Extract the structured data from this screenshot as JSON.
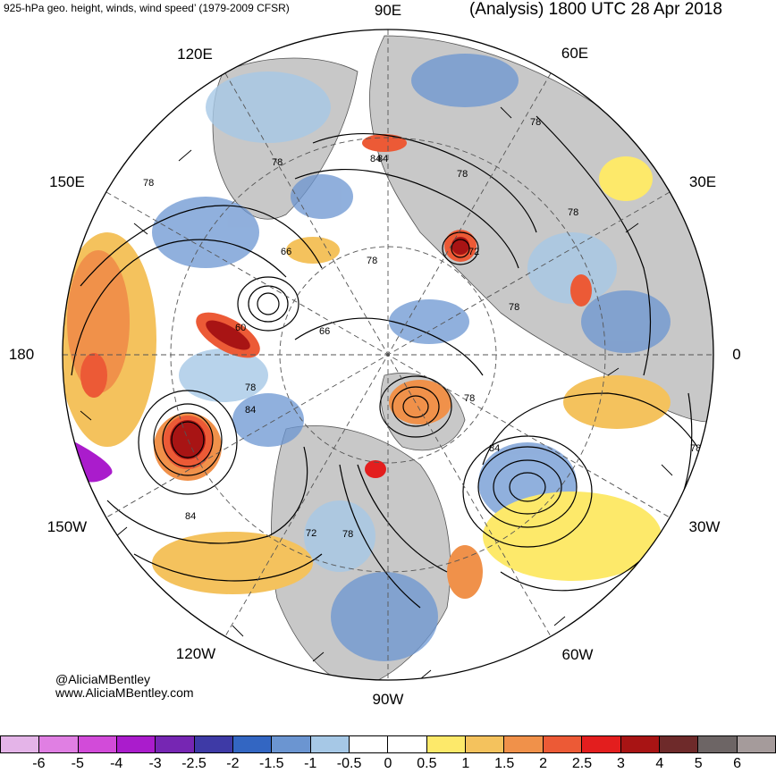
{
  "header": {
    "left_title": "925-hPa geo. height, winds, wind speed’ (1979-2009 CFSR)",
    "right_title": "(Analysis) 1800 UTC 28 Apr 2018"
  },
  "longitude_labels": [
    "90E",
    "60E",
    "30E",
    "0",
    "30W",
    "60W",
    "90W",
    "120W",
    "150W",
    "180",
    "150E",
    "120E"
  ],
  "contour_labels": [
    "84",
    "78",
    "78",
    "78",
    "78",
    "66",
    "78",
    "72",
    "78",
    "60",
    "66",
    "78",
    "84",
    "78",
    "84",
    "72",
    "78",
    "78",
    "84",
    "78",
    "84"
  ],
  "credits": {
    "handle": "@AliciaMBentley",
    "website": "www.AliciaMBentley.com"
  },
  "colorbar": {
    "labels": [
      "-6",
      "-5",
      "-4",
      "-3",
      "-2.5",
      "-2",
      "-1.5",
      "-1",
      "-0.5",
      "0",
      "0.5",
      "1",
      "1.5",
      "2",
      "2.5",
      "3",
      "4",
      "5",
      "6"
    ],
    "colors": [
      "#e4b4e8",
      "#e07fe3",
      "#d24bd9",
      "#aa1ccc",
      "#7626b3",
      "#3e3aa6",
      "#3366c2",
      "#6b95d1",
      "#a6c8e6",
      "#ffffff",
      "#ffffff",
      "#fde96a",
      "#f4c25d",
      "#f0914a",
      "#ec5a36",
      "#e31e1e",
      "#a81414",
      "#6e2a2a",
      "#6d6565",
      "#a59b9b"
    ]
  },
  "colors": {
    "land": "#c8c8c8",
    "contour": "#000000",
    "negative_anomaly": "#6b95d1",
    "positive_anomaly": "#f4c25d"
  }
}
